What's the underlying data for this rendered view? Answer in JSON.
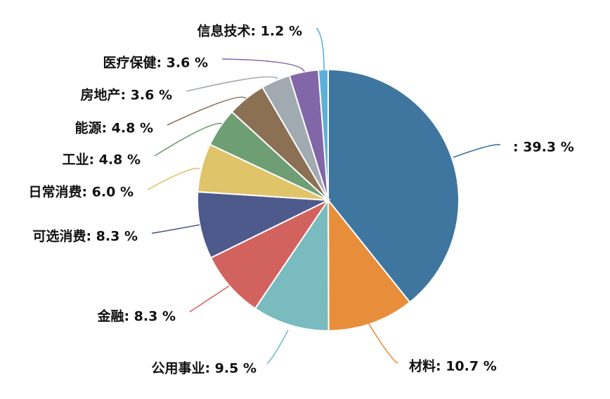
{
  "chart_data": {
    "type": "pie",
    "title": "",
    "start_at": "top",
    "direction": "clockwise",
    "slices": [
      {
        "label": "",
        "value": 39.3,
        "display": ": 39.3 %",
        "color": "#3e76a0"
      },
      {
        "label": "材料",
        "value": 10.7,
        "display": "材料: 10.7 %",
        "color": "#e88e3a"
      },
      {
        "label": "公用事业",
        "value": 9.5,
        "display": "公用事业: 9.5 %",
        "color": "#79bbbf"
      },
      {
        "label": "金融",
        "value": 8.3,
        "display": "金融: 8.3 %",
        "color": "#d2625e"
      },
      {
        "label": "可选消费",
        "value": 8.3,
        "display": "可选消费: 8.3 %",
        "color": "#4e5a8b"
      },
      {
        "label": "日常消费",
        "value": 6.0,
        "display": "日常消费: 6.0 %",
        "color": "#dfc46a"
      },
      {
        "label": "工业",
        "value": 4.8,
        "display": "工业: 4.8 %",
        "color": "#6e9e74"
      },
      {
        "label": "能源",
        "value": 4.8,
        "display": "能源: 4.8 %",
        "color": "#8c7054"
      },
      {
        "label": "房地产",
        "value": 3.6,
        "display": "房地产: 3.6 %",
        "color": "#a2aab1"
      },
      {
        "label": "医疗保健",
        "value": 3.6,
        "display": "医疗保健: 3.6 %",
        "color": "#8166a8"
      },
      {
        "label": "信息技术",
        "value": 1.2,
        "display": "信息技术: 1.2 %",
        "color": "#5fb0d8"
      }
    ]
  }
}
